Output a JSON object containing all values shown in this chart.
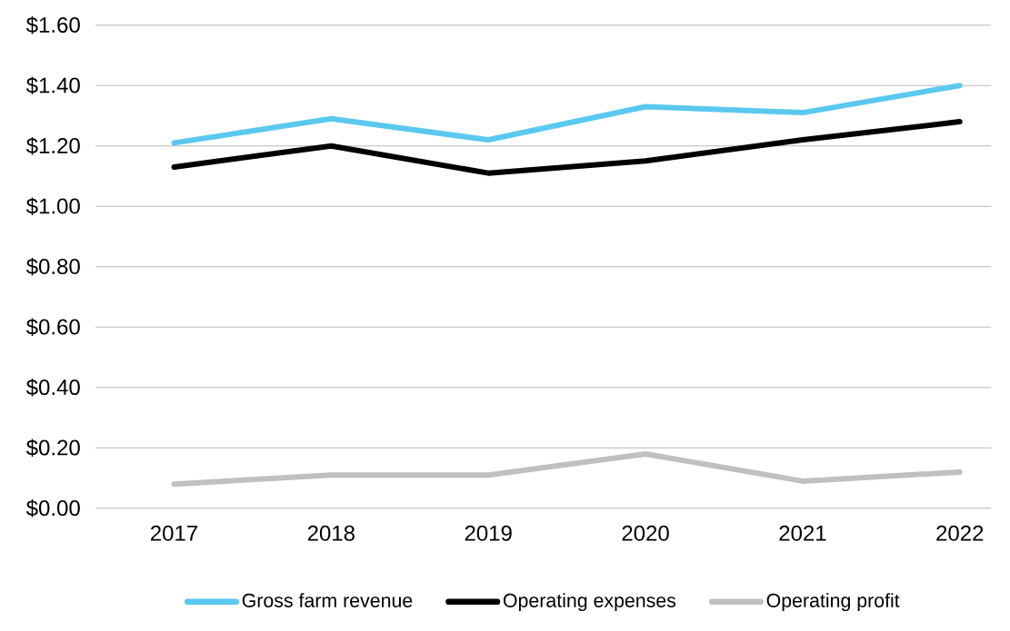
{
  "chart_data": {
    "type": "line",
    "categories": [
      "2017",
      "2018",
      "2019",
      "2020",
      "2021",
      "2022"
    ],
    "series": [
      {
        "name": "Gross farm revenue",
        "color": "#5bc8f0",
        "values": [
          1.21,
          1.29,
          1.22,
          1.33,
          1.31,
          1.4
        ]
      },
      {
        "name": "Operating expenses",
        "color": "#000000",
        "values": [
          1.13,
          1.2,
          1.11,
          1.15,
          1.22,
          1.28
        ]
      },
      {
        "name": "Operating profit",
        "color": "#c0c0c0",
        "values": [
          0.08,
          0.11,
          0.11,
          0.18,
          0.09,
          0.12
        ]
      }
    ],
    "ylim": [
      0,
      1.6
    ],
    "yticks": [
      {
        "value": 0,
        "label": "$0.00"
      },
      {
        "value": 0.2,
        "label": "$0.20"
      },
      {
        "value": 0.4,
        "label": "$0.40"
      },
      {
        "value": 0.6,
        "label": "$0.60"
      },
      {
        "value": 0.8,
        "label": "$0.80"
      },
      {
        "value": 1.0,
        "label": "$1.00"
      },
      {
        "value": 1.2,
        "label": "$1.20"
      },
      {
        "value": 1.4,
        "label": "$1.40"
      },
      {
        "value": 1.6,
        "label": "$1.60"
      }
    ],
    "grid": "y",
    "legend": "bottom",
    "marker": "none",
    "line_style": "solid"
  }
}
